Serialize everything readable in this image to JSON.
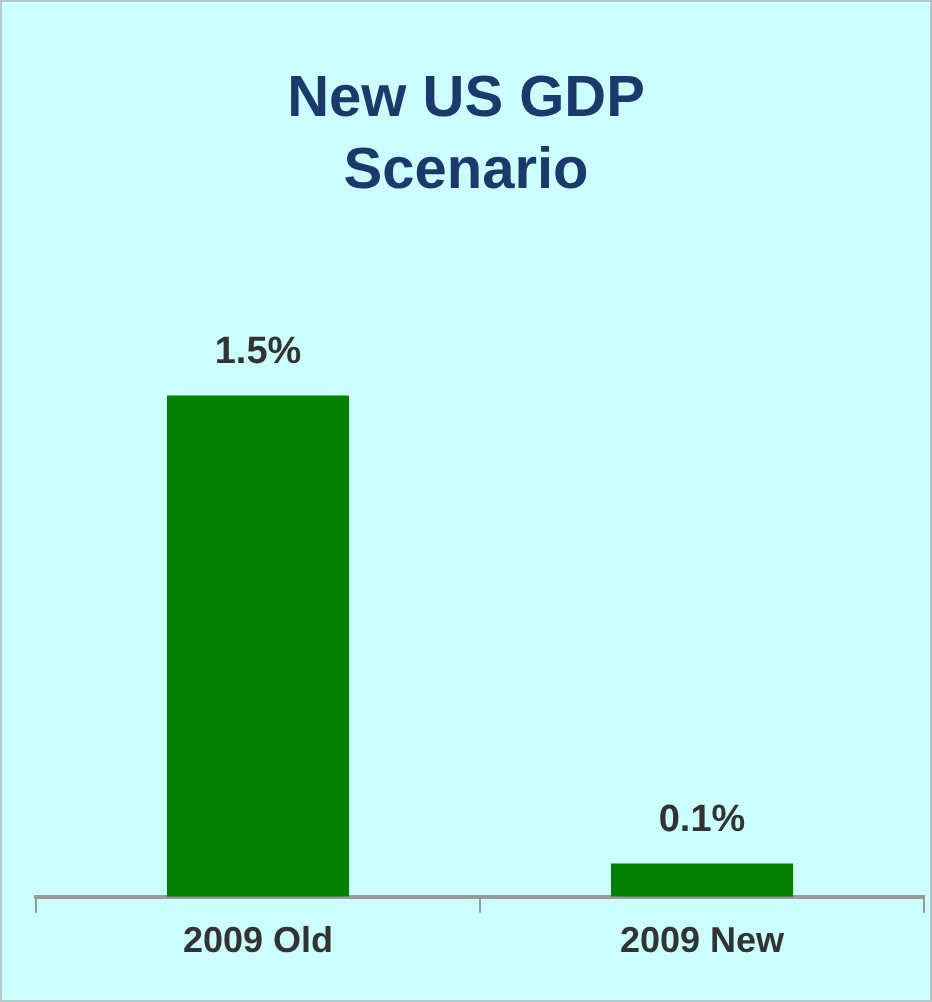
{
  "chart_data": {
    "type": "bar",
    "title": "New US GDP Scenario",
    "categories": [
      "2009 Old",
      "2009 New"
    ],
    "values": [
      1.5,
      0.1
    ],
    "color": "#008000",
    "value_labels": [
      "1.5%",
      "0.1%"
    ],
    "grid": false,
    "legend": false
  }
}
